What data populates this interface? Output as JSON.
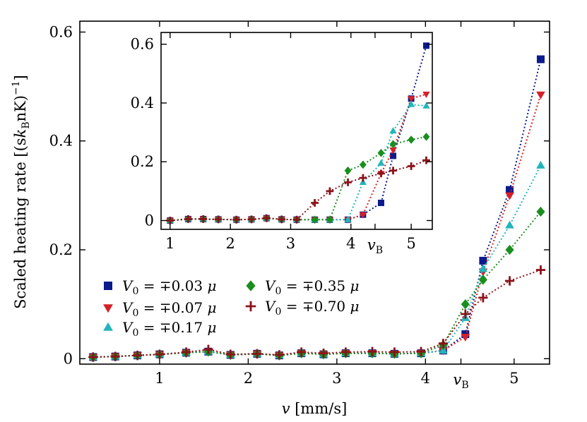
{
  "chart_data": [
    {
      "name": "main",
      "type": "line",
      "xlabel": "v [mm/s]",
      "ylabel": "Scaled heating rate [(sk_BnK)^-1]",
      "xlim": [
        0.1,
        5.4
      ],
      "ylim": [
        -0.01,
        0.62
      ],
      "xticks": [
        1,
        2,
        3,
        4,
        5
      ],
      "yticks": [
        0,
        0.2,
        0.4,
        0.6
      ],
      "extra_xtick": {
        "value": 4.4,
        "label": "v_B"
      },
      "grid": false,
      "legend_position": "center-left",
      "x": [
        0.25,
        0.5,
        0.75,
        1.0,
        1.3,
        1.55,
        1.8,
        2.1,
        2.35,
        2.6,
        2.85,
        3.1,
        3.4,
        3.65,
        3.95,
        4.2,
        4.45,
        4.65,
        4.95,
        5.3
      ],
      "series": [
        {
          "name": "V_0 = ∓0.03 μ",
          "color": "#0b1a8c",
          "marker": "square",
          "values": [
            0.003,
            0.004,
            0.006,
            0.008,
            0.011,
            0.013,
            0.007,
            0.009,
            0.006,
            0.01,
            0.008,
            0.01,
            0.01,
            0.009,
            0.01,
            0.015,
            0.045,
            0.18,
            0.31,
            0.55
          ]
        },
        {
          "name": "V_0 = ∓0.07 μ",
          "color": "#d62027",
          "marker": "triangle-down",
          "values": [
            0.003,
            0.004,
            0.006,
            0.008,
            0.011,
            0.013,
            0.007,
            0.009,
            0.006,
            0.01,
            0.008,
            0.01,
            0.01,
            0.009,
            0.01,
            0.015,
            0.04,
            0.16,
            0.3,
            0.485
          ]
        },
        {
          "name": "V_0 = ∓0.17 μ",
          "color": "#23b5b9",
          "marker": "triangle-up",
          "values": [
            0.003,
            0.004,
            0.006,
            0.008,
            0.011,
            0.013,
            0.007,
            0.009,
            0.006,
            0.01,
            0.008,
            0.01,
            0.01,
            0.009,
            0.01,
            0.015,
            0.075,
            0.165,
            0.245,
            0.355
          ]
        },
        {
          "name": "V_0 = ∓0.35 μ",
          "color": "#1a8e1f",
          "marker": "diamond",
          "values": [
            0.003,
            0.004,
            0.006,
            0.008,
            0.011,
            0.013,
            0.007,
            0.009,
            0.006,
            0.01,
            0.008,
            0.01,
            0.01,
            0.009,
            0.01,
            0.025,
            0.1,
            0.145,
            0.2,
            0.27
          ]
        },
        {
          "name": "V_0 = ∓0.70 μ",
          "color": "#8b1219",
          "marker": "plus",
          "values": [
            0.003,
            0.004,
            0.006,
            0.008,
            0.012,
            0.017,
            0.008,
            0.009,
            0.007,
            0.012,
            0.01,
            0.012,
            0.013,
            0.012,
            0.013,
            0.028,
            0.082,
            0.112,
            0.143,
            0.163
          ]
        }
      ]
    },
    {
      "name": "inset",
      "type": "line",
      "xlim": [
        0.85,
        5.35
      ],
      "ylim": [
        -0.03,
        0.64
      ],
      "xticks": [
        1,
        2,
        3,
        4,
        5
      ],
      "yticks": [
        0,
        0.2,
        0.4,
        0.6
      ],
      "tick_labels_y": [
        "0",
        "0.2",
        "0.4",
        "0.6"
      ],
      "extra_xtick": {
        "value": 4.4,
        "label": "v_B"
      },
      "grid": false,
      "x": [
        1.0,
        1.3,
        1.55,
        1.8,
        2.1,
        2.35,
        2.6,
        2.85,
        3.1,
        3.4,
        3.65,
        3.95,
        4.2,
        4.5,
        4.7,
        5.0,
        5.25
      ],
      "series": [
        {
          "name": "V_0 = ∓0.03 μ",
          "values": [
            0.0,
            0.005,
            0.005,
            0.004,
            0.003,
            0.004,
            0.008,
            0.004,
            0.003,
            0.003,
            0.003,
            0.003,
            0.02,
            0.06,
            0.22,
            0.415,
            0.595
          ]
        },
        {
          "name": "V_0 = ∓0.07 μ",
          "values": [
            0.0,
            0.005,
            0.005,
            0.004,
            0.003,
            0.004,
            0.008,
            0.004,
            0.003,
            0.003,
            0.003,
            0.003,
            0.02,
            0.16,
            0.24,
            0.415,
            0.43
          ]
        },
        {
          "name": "V_0 = ∓0.17 μ",
          "values": [
            0.0,
            0.005,
            0.005,
            0.004,
            0.003,
            0.004,
            0.008,
            0.004,
            0.003,
            0.003,
            0.003,
            0.003,
            0.13,
            0.195,
            0.305,
            0.395,
            0.39
          ]
        },
        {
          "name": "V_0 = ∓0.35 μ",
          "values": [
            0.0,
            0.005,
            0.005,
            0.004,
            0.003,
            0.004,
            0.008,
            0.004,
            0.003,
            0.003,
            0.003,
            0.17,
            0.19,
            0.23,
            0.26,
            0.275,
            0.285
          ]
        },
        {
          "name": "V_0 = ∓0.70 μ",
          "values": [
            0.0,
            0.005,
            0.005,
            0.004,
            0.003,
            0.004,
            0.008,
            0.004,
            0.003,
            0.06,
            0.1,
            0.13,
            0.145,
            0.16,
            0.17,
            0.185,
            0.205
          ]
        }
      ]
    }
  ],
  "labels": {
    "xlabel_var": "v",
    "xlabel_unit": " [mm/s]",
    "ylabel_prefix": "Scaled heating rate [(s",
    "ylabel_k": "k",
    "ylabel_B": "B",
    "ylabel_suffix": "nK)",
    "ylabel_exp": "−1",
    "ylabel_close": "]",
    "vB_v": "v",
    "vB_sub": "B",
    "legend_prefix": "V",
    "legend_sub": "0",
    "legend_values": [
      " = ∓0.03 ",
      " = ∓0.07 ",
      " = ∓0.17 ",
      " = ∓0.35 ",
      " = ∓0.70 "
    ],
    "legend_mu": "μ",
    "main_ytick_labels": [
      "0",
      "0.2",
      "0.4",
      "0.6"
    ],
    "main_xtick_labels": [
      "1",
      "2",
      "3",
      "4",
      "5"
    ],
    "inset_xtick_labels": [
      "1",
      "2",
      "3",
      "4",
      "5"
    ],
    "inset_ytick_labels": [
      "0",
      "0.2",
      "0.4",
      "0.6"
    ]
  }
}
